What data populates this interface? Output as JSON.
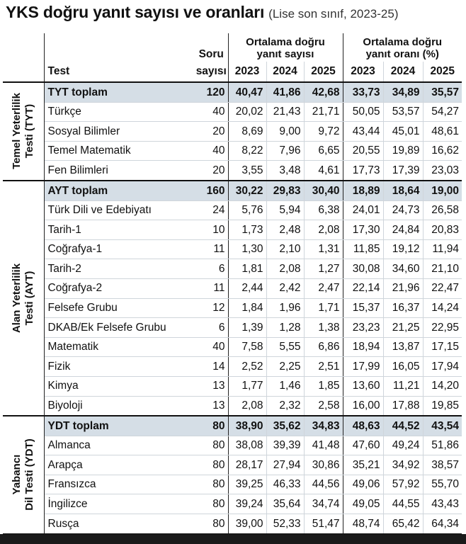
{
  "title": {
    "main": "YKS doğru yanıt sayısı ve oranları",
    "sub": "(Lise son sınıf, 2023-25)"
  },
  "header": {
    "test": "Test",
    "soru_line1": "Soru",
    "soru_line2": "sayısı",
    "group1_line1": "Ortalama doğru",
    "group1_line2": "yanıt sayısı",
    "group2_line1": "Ortalama doğru",
    "group2_line2": "yanıt oranı (%)",
    "years": [
      "2023",
      "2024",
      "2025"
    ]
  },
  "sections": {
    "tyt": {
      "line1": "Temel Yeterlilik",
      "line2": "Testi (TYT)"
    },
    "ayt": {
      "line1": "Alan Yeterlilik",
      "line2": "Testi (AYT)"
    },
    "ydt": {
      "line1": "Yabancı",
      "line2": "Dil Testi (YDT)"
    }
  },
  "rows": [
    {
      "name": "TYT toplam",
      "soru": "120",
      "s2023": "40,47",
      "s2024": "41,86",
      "s2025": "42,68",
      "o2023": "33,73",
      "o2024": "34,89",
      "o2025": "35,57"
    },
    {
      "name": "Türkçe",
      "soru": "40",
      "s2023": "20,02",
      "s2024": "21,43",
      "s2025": "21,71",
      "o2023": "50,05",
      "o2024": "53,57",
      "o2025": "54,27"
    },
    {
      "name": "Sosyal Bilimler",
      "soru": "20",
      "s2023": "8,69",
      "s2024": "9,00",
      "s2025": "9,72",
      "o2023": "43,44",
      "o2024": "45,01",
      "o2025": "48,61"
    },
    {
      "name": "Temel Matematik",
      "soru": "40",
      "s2023": "8,22",
      "s2024": "7,96",
      "s2025": "6,65",
      "o2023": "20,55",
      "o2024": "19,89",
      "o2025": "16,62"
    },
    {
      "name": "Fen Bilimleri",
      "soru": "20",
      "s2023": "3,55",
      "s2024": "3,48",
      "s2025": "4,61",
      "o2023": "17,73",
      "o2024": "17,39",
      "o2025": "23,03"
    },
    {
      "name": "AYT toplam",
      "soru": "160",
      "s2023": "30,22",
      "s2024": "29,83",
      "s2025": "30,40",
      "o2023": "18,89",
      "o2024": "18,64",
      "o2025": "19,00"
    },
    {
      "name": "Türk Dili ve Edebiyatı",
      "soru": "24",
      "s2023": "5,76",
      "s2024": "5,94",
      "s2025": "6,38",
      "o2023": "24,01",
      "o2024": "24,73",
      "o2025": "26,58"
    },
    {
      "name": "Tarih-1",
      "soru": "10",
      "s2023": "1,73",
      "s2024": "2,48",
      "s2025": "2,08",
      "o2023": "17,30",
      "o2024": "24,84",
      "o2025": "20,83"
    },
    {
      "name": "Coğrafya-1",
      "soru": "11",
      "s2023": "1,30",
      "s2024": "2,10",
      "s2025": "1,31",
      "o2023": "11,85",
      "o2024": "19,12",
      "o2025": "11,94"
    },
    {
      "name": "Tarih-2",
      "soru": "6",
      "s2023": "1,81",
      "s2024": "2,08",
      "s2025": "1,27",
      "o2023": "30,08",
      "o2024": "34,60",
      "o2025": "21,10"
    },
    {
      "name": "Coğrafya-2",
      "soru": "11",
      "s2023": "2,44",
      "s2024": "2,42",
      "s2025": "2,47",
      "o2023": "22,14",
      "o2024": "21,96",
      "o2025": "22,47"
    },
    {
      "name": "Felsefe Grubu",
      "soru": "12",
      "s2023": "1,84",
      "s2024": "1,96",
      "s2025": "1,71",
      "o2023": "15,37",
      "o2024": "16,37",
      "o2025": "14,24"
    },
    {
      "name": "DKAB/Ek Felsefe Grubu",
      "soru": "6",
      "s2023": "1,39",
      "s2024": "1,28",
      "s2025": "1,38",
      "o2023": "23,23",
      "o2024": "21,25",
      "o2025": "22,95"
    },
    {
      "name": "Matematik",
      "soru": "40",
      "s2023": "7,58",
      "s2024": "5,55",
      "s2025": "6,86",
      "o2023": "18,94",
      "o2024": "13,87",
      "o2025": "17,15"
    },
    {
      "name": "Fizik",
      "soru": "14",
      "s2023": "2,52",
      "s2024": "2,25",
      "s2025": "2,51",
      "o2023": "17,99",
      "o2024": "16,05",
      "o2025": "17,94"
    },
    {
      "name": "Kimya",
      "soru": "13",
      "s2023": "1,77",
      "s2024": "1,46",
      "s2025": "1,85",
      "o2023": "13,60",
      "o2024": "11,21",
      "o2025": "14,20"
    },
    {
      "name": "Biyoloji",
      "soru": "13",
      "s2023": "2,08",
      "s2024": "2,32",
      "s2025": "2,58",
      "o2023": "16,00",
      "o2024": "17,88",
      "o2025": "19,85"
    },
    {
      "name": "YDT toplam",
      "soru": "80",
      "s2023": "38,90",
      "s2024": "35,62",
      "s2025": "34,83",
      "o2023": "48,63",
      "o2024": "44,52",
      "o2025": "43,54"
    },
    {
      "name": "Almanca",
      "soru": "80",
      "s2023": "38,08",
      "s2024": "39,39",
      "s2025": "41,48",
      "o2023": "47,60",
      "o2024": "49,24",
      "o2025": "51,86"
    },
    {
      "name": "Arapça",
      "soru": "80",
      "s2023": "28,17",
      "s2024": "27,94",
      "s2025": "30,86",
      "o2023": "35,21",
      "o2024": "34,92",
      "o2025": "38,57"
    },
    {
      "name": "Fransızca",
      "soru": "80",
      "s2023": "39,25",
      "s2024": "46,33",
      "s2025": "44,56",
      "o2023": "49,06",
      "o2024": "57,92",
      "o2025": "55,70"
    },
    {
      "name": "İngilizce",
      "soru": "80",
      "s2023": "39,24",
      "s2024": "35,64",
      "s2025": "34,74",
      "o2023": "49,05",
      "o2024": "44,55",
      "o2025": "43,43"
    },
    {
      "name": "Rusça",
      "soru": "80",
      "s2023": "39,00",
      "s2024": "52,33",
      "s2025": "51,47",
      "o2023": "48,74",
      "o2024": "65,42",
      "o2025": "64,34"
    }
  ]
}
